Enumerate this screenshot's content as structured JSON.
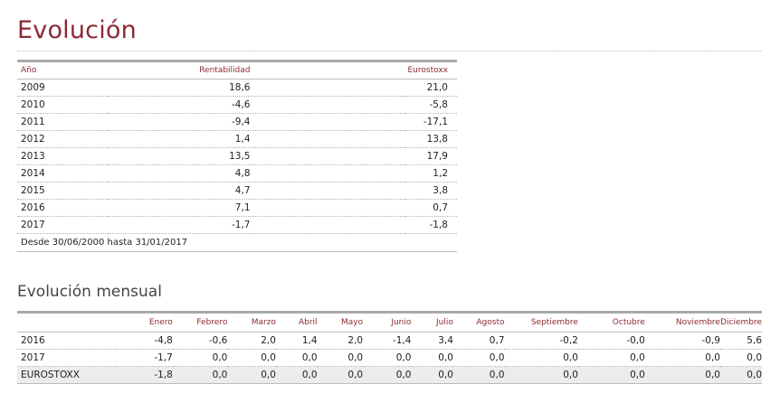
{
  "title": "Evolución",
  "annual": {
    "headers": {
      "year": "Año",
      "rentabilidad": "Rentabilidad",
      "eurostoxx": "Eurostoxx"
    },
    "rows": [
      {
        "year": "2009",
        "rentabilidad": "18,6",
        "eurostoxx": "21,0"
      },
      {
        "year": "2010",
        "rentabilidad": "-4,6",
        "eurostoxx": "-5,8"
      },
      {
        "year": "2011",
        "rentabilidad": "-9,4",
        "eurostoxx": "-17,1"
      },
      {
        "year": "2012",
        "rentabilidad": "1,4",
        "eurostoxx": "13,8"
      },
      {
        "year": "2013",
        "rentabilidad": "13,5",
        "eurostoxx": "17,9"
      },
      {
        "year": "2014",
        "rentabilidad": "4,8",
        "eurostoxx": "1,2"
      },
      {
        "year": "2015",
        "rentabilidad": "4,7",
        "eurostoxx": "3,8"
      },
      {
        "year": "2016",
        "rentabilidad": "7,1",
        "eurostoxx": "0,7"
      },
      {
        "year": "2017",
        "rentabilidad": "-1,7",
        "eurostoxx": "-1,8"
      }
    ],
    "note": "Desde 30/06/2000 hasta 31/01/2017"
  },
  "monthly": {
    "title": "Evolución mensual",
    "months": [
      "Enero",
      "Febrero",
      "Marzo",
      "Abril",
      "Mayo",
      "Junio",
      "Julio",
      "Agosto",
      "Septiembre",
      "Octubre",
      "Noviembre",
      "Diciembre"
    ],
    "rows": [
      {
        "label": "2016",
        "values": [
          "-4,8",
          "-0,6",
          "2,0",
          "1,4",
          "2,0",
          "-1,4",
          "3,4",
          "0,7",
          "-0,2",
          "-0,0",
          "-0,9",
          "5,6"
        ]
      },
      {
        "label": "2017",
        "values": [
          "-1,7",
          "0,0",
          "0,0",
          "0,0",
          "0,0",
          "0,0",
          "0,0",
          "0,0",
          "0,0",
          "0,0",
          "0,0",
          "0,0"
        ]
      },
      {
        "label": "EUROSTOXX",
        "values": [
          "-1,8",
          "0,0",
          "0,0",
          "0,0",
          "0,0",
          "0,0",
          "0,0",
          "0,0",
          "0,0",
          "0,0",
          "0,0",
          "0,0"
        ]
      }
    ]
  }
}
